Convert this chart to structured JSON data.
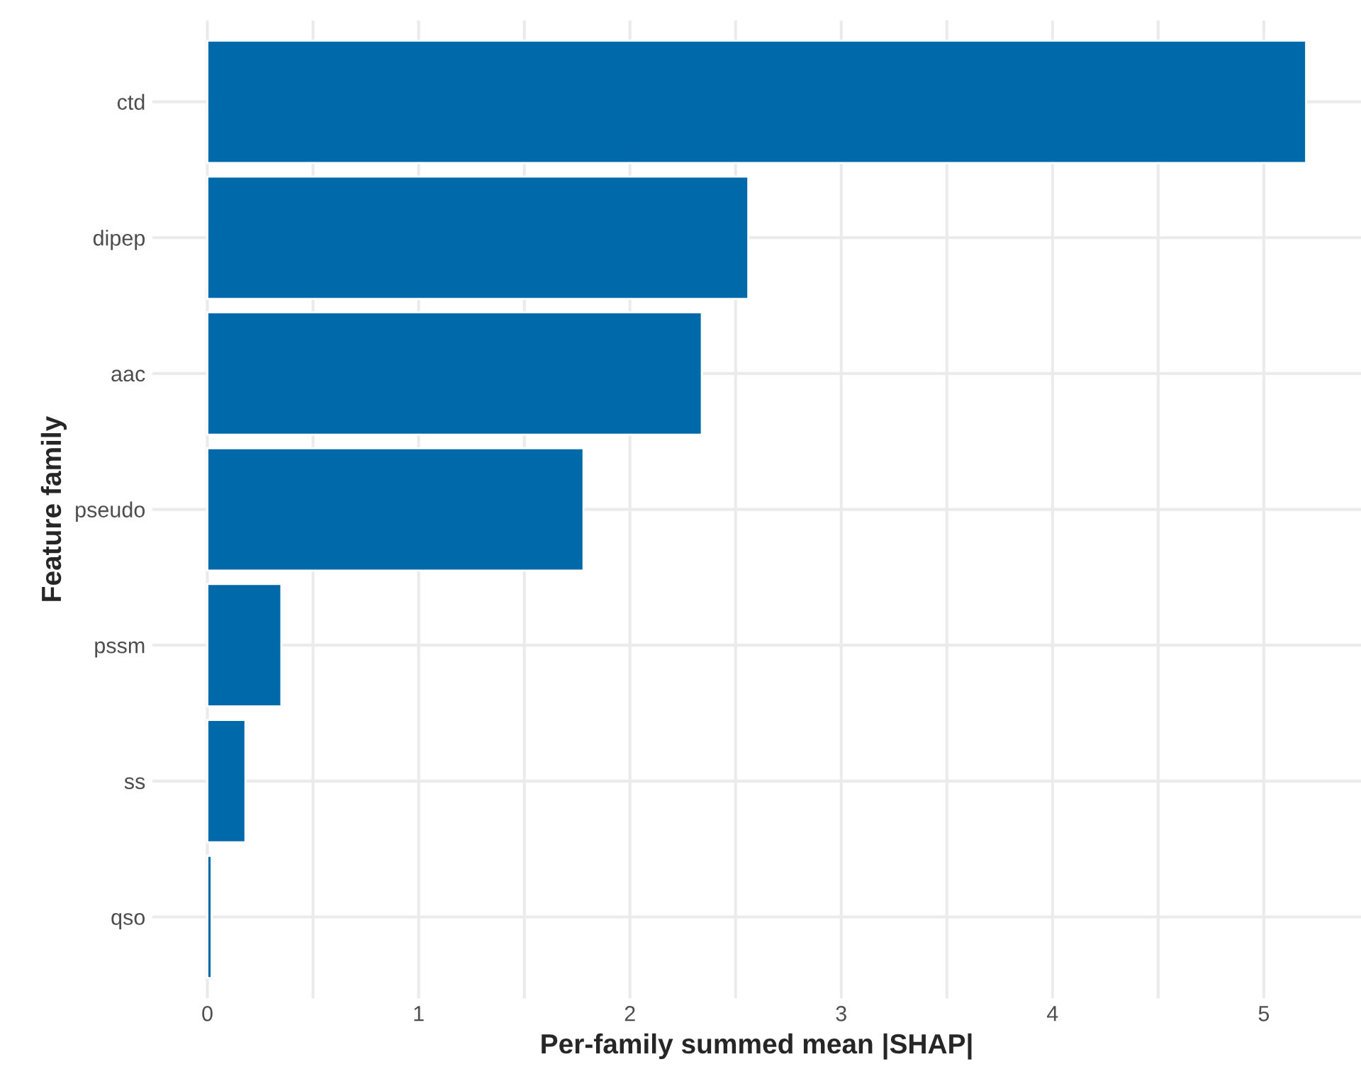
{
  "chart_data": {
    "type": "bar",
    "orientation": "horizontal",
    "xlabel": "Per-family summed mean |SHAP|",
    "ylabel": "Feature family",
    "categories": [
      "ctd",
      "dipep",
      "aac",
      "pseudo",
      "pssm",
      "ss",
      "qso"
    ],
    "values": [
      5.2,
      2.56,
      2.34,
      1.78,
      0.35,
      0.18,
      0.02
    ],
    "color": "#0069aa",
    "xlim": [
      -0.26,
      5.46
    ],
    "xticks": [
      0,
      {
        "value": 0.5,
        "label": null
      },
      1,
      {
        "value": 1.5,
        "label": null
      },
      2,
      {
        "value": 2.5,
        "label": null
      },
      3,
      {
        "value": 3.5,
        "label": null
      },
      4,
      {
        "value": 4.5,
        "label": null
      },
      5
    ],
    "grid": true
  }
}
